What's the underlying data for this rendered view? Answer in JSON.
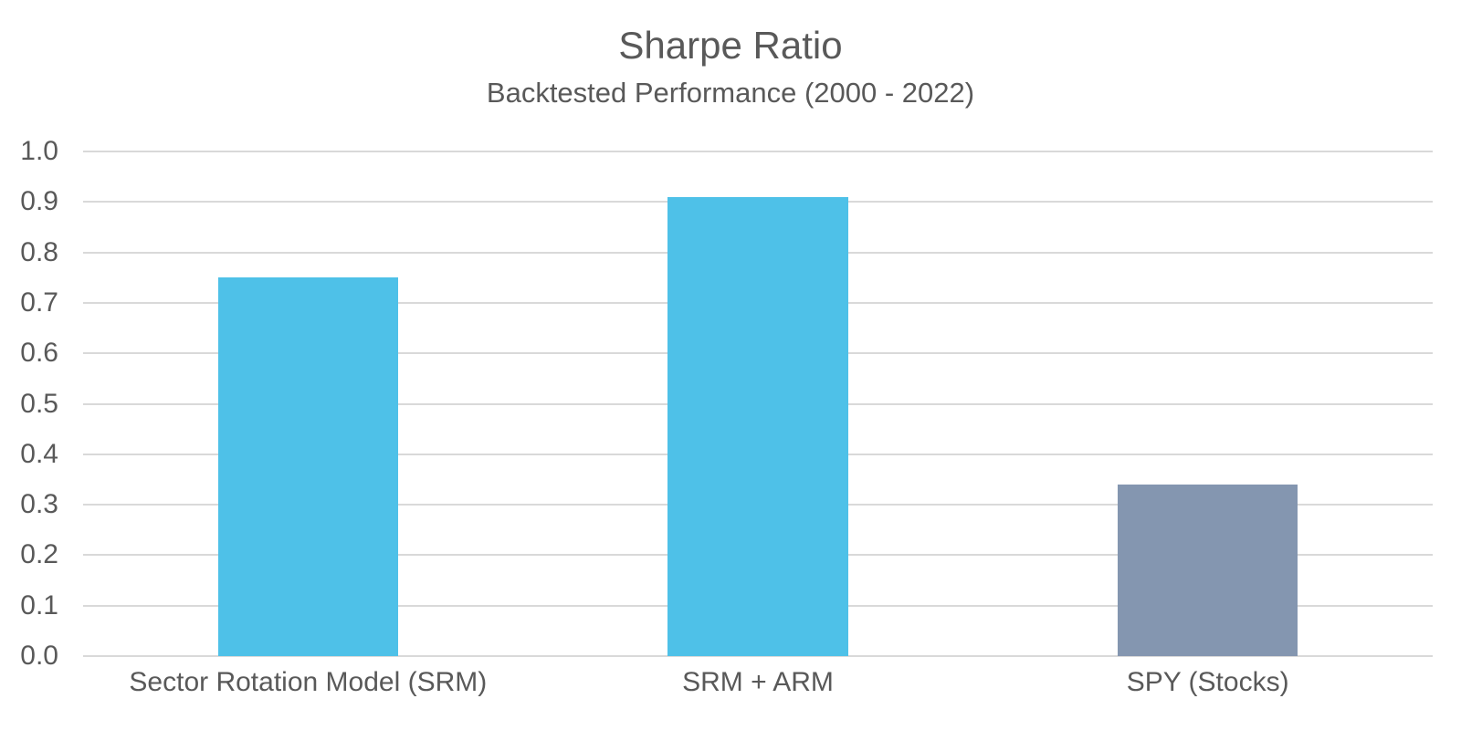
{
  "chart_data": {
    "type": "bar",
    "title": "Sharpe Ratio",
    "subtitle": "Backtested Performance (2000 - 2022)",
    "categories": [
      "Sector Rotation Model (SRM)",
      "SRM + ARM",
      "SPY (Stocks)"
    ],
    "values": [
      0.75,
      0.91,
      0.34
    ],
    "bar_colors": [
      "#4EC1E8",
      "#4EC1E8",
      "#8496B0"
    ],
    "xlabel": "",
    "ylabel": "",
    "ylim": [
      0.0,
      1.0
    ],
    "ytick_step": 0.1,
    "ytick_decimals": 1,
    "grid": "horizontal",
    "legend": "none",
    "colors": {
      "grid": "#D9D9D9",
      "text": "#595959",
      "background": "#FFFFFF"
    }
  }
}
